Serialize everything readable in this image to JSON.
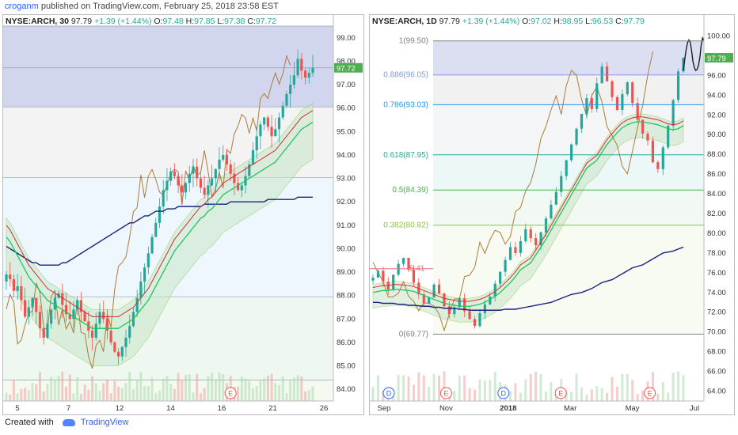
{
  "header": {
    "author": "croganm",
    "published": "published on TradingView.com, February 25, 2018 23:58 EST"
  },
  "footer": {
    "created_with": "Created with",
    "brand": "TradingView"
  },
  "colors": {
    "up": "#26a69a",
    "down": "#ef5350",
    "ma_green": "#22c55e",
    "ma_navy": "#1a237e",
    "ma_blue": "#1e88e5",
    "ma_red": "#d32f2f",
    "brown": "#b07a3a",
    "cloud_green": "#c8e6c9",
    "cloud_red": "#ffcdd2",
    "fib_zone": "#c5cae9",
    "price_badge": "#4caf50"
  },
  "left_chart": {
    "legend": {
      "symbol": "NYSE:ARCH, 30",
      "price": "97.79",
      "change": "+1.39 (+1.44%)",
      "o_label": "O:",
      "o": "97.48",
      "h_label": "H:",
      "h": "97.85",
      "l_label": "L:",
      "l": "97.38",
      "c_label": "C:",
      "c": "97.72"
    },
    "price_label": "97.72",
    "chart_data": {
      "type": "candlestick",
      "title": "NYSE:ARCH, 30",
      "x_tick_labels": [
        "5",
        "7",
        "12",
        "14",
        "16",
        "21",
        "26"
      ],
      "y_tick_labels": [
        "84.00",
        "85.00",
        "86.00",
        "87.00",
        "88.00",
        "89.00",
        "90.00",
        "91.00",
        "92.00",
        "93.00",
        "94.00",
        "95.00",
        "96.00",
        "97.00",
        "98.00",
        "99.00"
      ],
      "ylim": [
        83.5,
        99.5
      ],
      "events": [
        {
          "label": "E",
          "x_index": 60
        }
      ],
      "shaded_zone": [
        96.05,
        99.5
      ],
      "horizontal_lines": [
        99.5,
        97.72,
        96.05,
        93.03,
        87.95,
        84.39
      ],
      "close": [
        88.9,
        88.7,
        88.2,
        88.4,
        87.8,
        87.1,
        87.5,
        87.9,
        87.3,
        86.6,
        86.2,
        86.8,
        87.4,
        87.9,
        88.1,
        87.6,
        87.2,
        87.0,
        87.4,
        87.8,
        87.3,
        86.9,
        86.5,
        86.2,
        86.8,
        87.3,
        87.0,
        86.5,
        86.0,
        85.6,
        85.4,
        85.8,
        86.2,
        86.7,
        87.3,
        87.9,
        88.6,
        89.2,
        89.8,
        90.5,
        91.1,
        91.8,
        92.5,
        92.9,
        93.3,
        93.1,
        92.7,
        92.4,
        92.8,
        93.2,
        93.5,
        93.0,
        92.6,
        92.3,
        92.7,
        93.0,
        93.4,
        93.8,
        94.0,
        93.6,
        93.2,
        92.8,
        92.5,
        92.7,
        93.1,
        93.6,
        94.2,
        94.8,
        95.3,
        95.6,
        95.2,
        94.8,
        95.1,
        95.6,
        96.1,
        96.6,
        97.0,
        97.4,
        98.1,
        97.6,
        97.3,
        97.5,
        97.72
      ],
      "ma_200": [
        90.1,
        90.0,
        89.9,
        89.8,
        89.7,
        89.6,
        89.5,
        89.4,
        89.4,
        89.3,
        89.3,
        89.3,
        89.3,
        89.3,
        89.3,
        89.4,
        89.4,
        89.5,
        89.6,
        89.7,
        89.8,
        89.9,
        90.0,
        90.1,
        90.2,
        90.3,
        90.4,
        90.5,
        90.6,
        90.7,
        90.8,
        90.9,
        91.0,
        91.1,
        91.1,
        91.2,
        91.3,
        91.4,
        91.4,
        91.5,
        91.6,
        91.6,
        91.6,
        91.7,
        91.7,
        91.7,
        91.8,
        91.8,
        91.8,
        91.8,
        91.8,
        91.8,
        91.8,
        91.9,
        91.9,
        91.9,
        91.9,
        91.9,
        91.9,
        91.9,
        92.0,
        92.0,
        92.0,
        92.0,
        92.0,
        92.0,
        92.0,
        92.0,
        92.0,
        92.0,
        92.1,
        92.1,
        92.1,
        92.1,
        92.1,
        92.1,
        92.1,
        92.1,
        92.2,
        92.2,
        92.2,
        92.2,
        92.2
      ],
      "ma_50": [
        90.5,
        90.3,
        90.0,
        89.7,
        89.4,
        89.1,
        88.8,
        88.6,
        88.4,
        88.2,
        88.0,
        87.8,
        87.7,
        87.6,
        87.5,
        87.4,
        87.3,
        87.2,
        87.1,
        87.0,
        86.9,
        86.8,
        86.7,
        86.6,
        86.6,
        86.6,
        86.6,
        86.6,
        86.6,
        86.6,
        86.6,
        86.7,
        86.8,
        86.9,
        87.0,
        87.2,
        87.4,
        87.6,
        87.8,
        88.1,
        88.4,
        88.7,
        89.0,
        89.3,
        89.6,
        89.9,
        90.1,
        90.3,
        90.5,
        90.7,
        90.9,
        91.1,
        91.3,
        91.4,
        91.6,
        91.7,
        91.9,
        92.1,
        92.3,
        92.4,
        92.5,
        92.6,
        92.7,
        92.8,
        92.9,
        93.0,
        93.1,
        93.2,
        93.3,
        93.4,
        93.5,
        93.6,
        93.7,
        93.9,
        94.1,
        94.3,
        94.5,
        94.7,
        94.9,
        95.1,
        95.2,
        95.3,
        95.4
      ]
    }
  },
  "right_chart": {
    "legend": {
      "symbol": "NYSE:ARCH, 1D",
      "price": "97.79",
      "change": "+1.39 (+1.44%)",
      "o_label": "O:",
      "o": "97.02",
      "h_label": "H:",
      "h": "98.95",
      "l_label": "L:",
      "l": "96.53",
      "c_label": "C:",
      "c": "97.79"
    },
    "price_label": "97.79",
    "chart_data": {
      "type": "candlestick",
      "title": "NYSE:ARCH, 1D",
      "x_tick_labels": [
        "Sep",
        "Nov",
        "2018",
        "Mar",
        "May",
        "Jul"
      ],
      "y_tick_labels": [
        "64.00",
        "66.00",
        "68.00",
        "70.00",
        "72.00",
        "74.00",
        "76.00",
        "78.00",
        "80.00",
        "82.00",
        "84.00",
        "86.00",
        "88.00",
        "90.00",
        "92.00",
        "94.00",
        "96.00",
        "98.00",
        "100.00"
      ],
      "ylim": [
        63,
        101
      ],
      "fibonacci": [
        {
          "label": "1(99.50)",
          "level": 99.5,
          "color": "#808080"
        },
        {
          "label": "0.886(96.05)",
          "level": 96.05,
          "color": "#7e9cd8"
        },
        {
          "label": "0.786(93.03)",
          "level": 93.03,
          "color": "#2196f3"
        },
        {
          "label": "0.618(87.95)",
          "level": 87.95,
          "color": "#26a69a"
        },
        {
          "label": "0.5(84.39)",
          "level": 84.39,
          "color": "#4caf50"
        },
        {
          "label": "0.382(80.82)",
          "level": 80.82,
          "color": "#8bc34a"
        },
        {
          "label": "0(69.77)",
          "level": 69.77,
          "color": "#808080"
        }
      ],
      "partial_label": "5.41",
      "partial_level": 76.41,
      "events": [
        {
          "label": "D"
        },
        {
          "label": "E"
        },
        {
          "label": "D"
        },
        {
          "label": "E"
        },
        {
          "label": "E"
        }
      ],
      "close": [
        75.5,
        76.2,
        75.1,
        74.3,
        75.8,
        76.9,
        77.5,
        76.3,
        75.0,
        73.8,
        72.9,
        73.5,
        74.8,
        73.9,
        72.6,
        71.8,
        72.5,
        73.4,
        72.1,
        71.3,
        70.6,
        71.9,
        72.8,
        73.6,
        74.9,
        76.1,
        77.3,
        78.6,
        78.0,
        79.2,
        80.4,
        79.5,
        78.8,
        80.1,
        81.5,
        82.9,
        84.2,
        85.8,
        87.4,
        89.0,
        90.6,
        92.1,
        93.7,
        92.6,
        95.2,
        96.9,
        95.4,
        93.8,
        92.5,
        94.1,
        95.3,
        93.2,
        91.5,
        90.1,
        89.4,
        87.2,
        86.5,
        88.7,
        90.9,
        93.5,
        96.4,
        97.79
      ],
      "ma_200": [
        73.0,
        73.0,
        72.9,
        72.9,
        72.8,
        72.8,
        72.7,
        72.7,
        72.6,
        72.6,
        72.5,
        72.5,
        72.4,
        72.4,
        72.3,
        72.3,
        72.2,
        72.2,
        72.2,
        72.2,
        72.2,
        72.2,
        72.3,
        72.3,
        72.4,
        72.5,
        72.6,
        72.7,
        72.8,
        73.0,
        73.2,
        73.4,
        73.6,
        73.8,
        74.0,
        74.2,
        74.4,
        74.7,
        75.0,
        75.3,
        75.6,
        75.9,
        76.2,
        76.5,
        76.8,
        77.1,
        77.4,
        77.7,
        78.0,
        78.2,
        78.4,
        78.6
      ],
      "ma_50": [
        74.0,
        74.1,
        74.2,
        74.2,
        74.3,
        74.3,
        74.2,
        74.1,
        73.9,
        73.7,
        73.5,
        73.3,
        73.1,
        72.9,
        72.8,
        72.7,
        72.6,
        72.6,
        72.7,
        72.8,
        73.0,
        73.3,
        73.6,
        74.0,
        74.5,
        75.0,
        75.6,
        76.3,
        77.0,
        77.8,
        78.6,
        79.4,
        80.3,
        81.2,
        82.1,
        83.0,
        83.9,
        84.8,
        85.7,
        86.6,
        87.4,
        88.2,
        89.0,
        89.6,
        90.2,
        90.7,
        91.0,
        91.2,
        91.3,
        91.3,
        91.2,
        91.0,
        90.8,
        90.6,
        90.5,
        90.6,
        90.9
      ],
      "projection": [
        96.5,
        97.6,
        98.6,
        99.3,
        99.6,
        99.4,
        98.5,
        97.4,
        96.8,
        96.5,
        96.6,
        97.0,
        97.8,
        99.1,
        99.8,
        99.5
      ]
    }
  }
}
